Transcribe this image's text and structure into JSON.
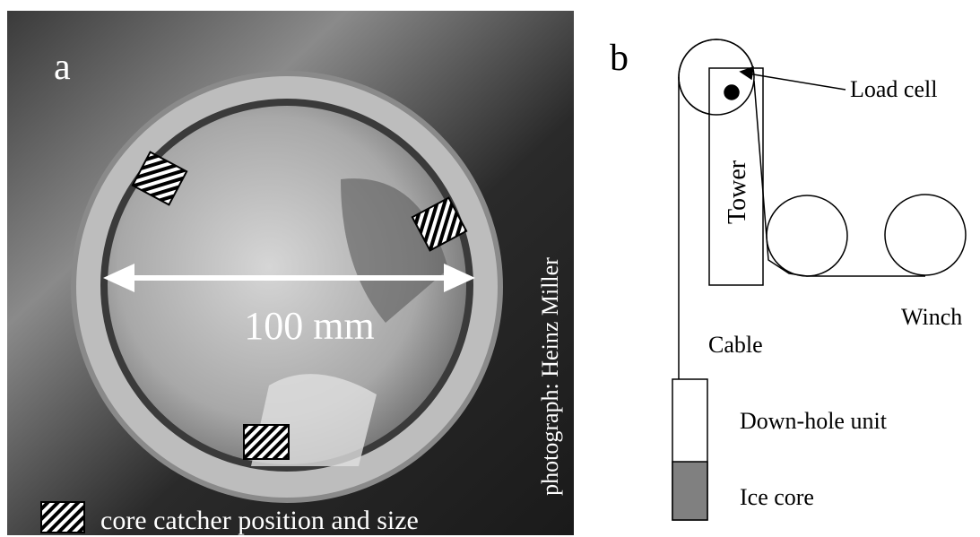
{
  "panel_a": {
    "label": "a",
    "scale_label": "100 mm",
    "credit": "photograph: Heinz Miller",
    "legend": "core catcher position and size"
  },
  "panel_b": {
    "label": "b",
    "load_cell": "Load cell",
    "tower": "Tower",
    "winch": "Winch",
    "cable": "Cable",
    "down_hole_unit": "Down-hole unit",
    "ice_core": "Ice core"
  }
}
